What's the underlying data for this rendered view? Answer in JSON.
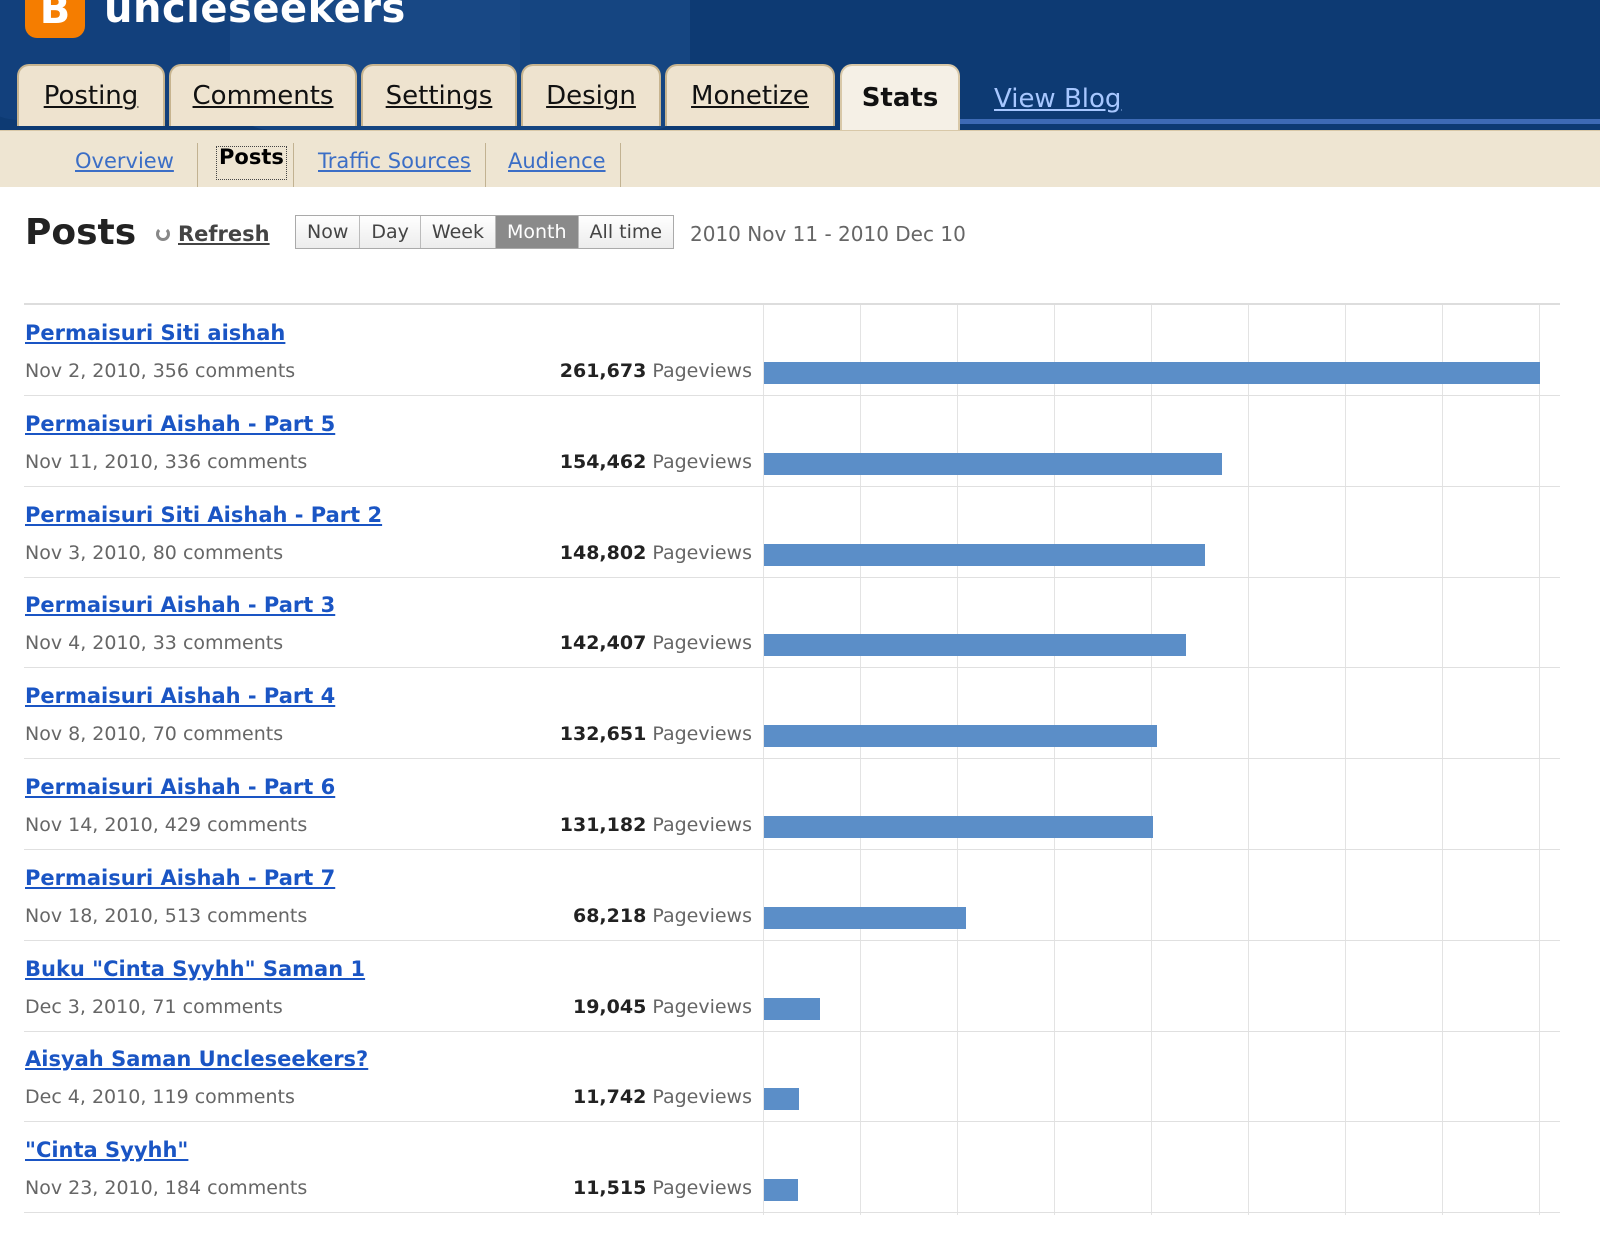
{
  "header": {
    "logo_letter": "B",
    "blog_name": "uncleseekers",
    "tabs": [
      {
        "label": "Posting",
        "active": false
      },
      {
        "label": "Comments",
        "active": false
      },
      {
        "label": "Settings",
        "active": false
      },
      {
        "label": "Design",
        "active": false
      },
      {
        "label": "Monetize",
        "active": false
      },
      {
        "label": "Stats",
        "active": true
      }
    ],
    "view_blog": "View Blog"
  },
  "subnav": {
    "items": [
      {
        "label": "Overview",
        "active": false
      },
      {
        "label": "Posts",
        "active": true
      },
      {
        "label": "Traffic Sources",
        "active": false
      },
      {
        "label": "Audience",
        "active": false
      }
    ]
  },
  "page": {
    "title": "Posts",
    "refresh_label": "Refresh",
    "ranges": [
      {
        "label": "Now",
        "active": false
      },
      {
        "label": "Day",
        "active": false
      },
      {
        "label": "Week",
        "active": false
      },
      {
        "label": "Month",
        "active": true
      },
      {
        "label": "All time",
        "active": false
      }
    ],
    "date_range": "2010 Nov 11 - 2010 Dec 10",
    "pageviews_label": "Pageviews"
  },
  "chart_data": {
    "type": "bar",
    "orientation": "horizontal",
    "categories": [
      "Permaisuri Siti aishah",
      "Permaisuri Aishah - Part 5",
      "Permaisuri Siti Aishah - Part 2",
      "Permaisuri Aishah - Part 3",
      "Permaisuri Aishah - Part 4",
      "Permaisuri Aishah - Part 6",
      "Permaisuri Aishah - Part 7",
      "Buku \"Cinta Syyhh\" Saman 1",
      "Aisyah Saman Uncleseekers?",
      "\"Cinta Syyhh\""
    ],
    "values": [
      261673,
      154462,
      148802,
      142407,
      132651,
      131182,
      68218,
      19045,
      11742,
      11515
    ],
    "series_color": "#5b8ec8"
  },
  "posts": [
    {
      "title": "Permaisuri Siti aishah",
      "meta": "Nov 2, 2010, 356 comments",
      "pageviews": "261,673"
    },
    {
      "title": "Permaisuri Aishah - Part 5",
      "meta": "Nov 11, 2010, 336 comments",
      "pageviews": "154,462"
    },
    {
      "title": "Permaisuri Siti Aishah - Part 2",
      "meta": "Nov 3, 2010, 80 comments",
      "pageviews": "148,802"
    },
    {
      "title": "Permaisuri Aishah - Part 3",
      "meta": "Nov 4, 2010, 33 comments",
      "pageviews": "142,407"
    },
    {
      "title": "Permaisuri Aishah - Part 4",
      "meta": "Nov 8, 2010, 70 comments",
      "pageviews": "132,651"
    },
    {
      "title": "Permaisuri Aishah - Part 6",
      "meta": "Nov 14, 2010, 429 comments",
      "pageviews": "131,182"
    },
    {
      "title": "Permaisuri Aishah - Part 7",
      "meta": "Nov 18, 2010, 513 comments",
      "pageviews": "68,218"
    },
    {
      "title": "Buku \"Cinta Syyhh\" Saman 1",
      "meta": "Dec 3, 2010, 71 comments",
      "pageviews": "19,045"
    },
    {
      "title": "Aisyah Saman Uncleseekers?",
      "meta": "Dec 4, 2010, 119 comments",
      "pageviews": "11,742"
    },
    {
      "title": "\"Cinta Syyhh\"",
      "meta": "Nov 23, 2010, 184 comments",
      "pageviews": "11,515"
    }
  ],
  "colors": {
    "header_bg": "#0d3a73",
    "logo_orange": "#f57d00",
    "tab_bg": "#eee3cf",
    "link_blue": "#1a55c4",
    "bar_blue": "#5b8ec8",
    "active_range_bg": "#8a8a8a"
  }
}
